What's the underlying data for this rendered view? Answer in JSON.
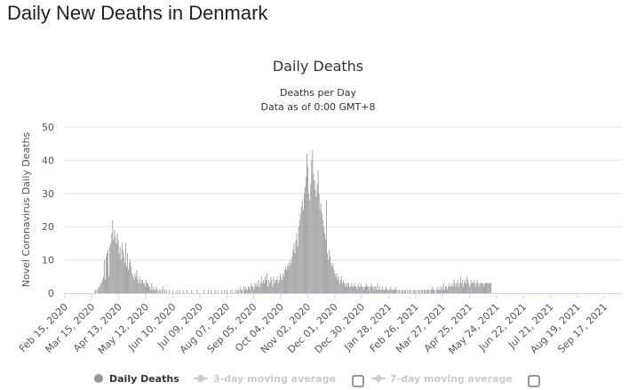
{
  "page": {
    "title": "Daily New Deaths in Denmark"
  },
  "colors": {
    "bar": "#999999",
    "grid": "#e6e6e6",
    "axis": "#ccd6eb",
    "legend_off": "#cccccc",
    "legend_on": "#333333"
  },
  "chart_data": {
    "type": "bar",
    "title": "Daily Deaths",
    "subtitle_lines": [
      "Deaths per Day",
      "Data as of 0:00 GMT+8"
    ],
    "ylabel": "Novel Coronavirus Daily Deaths",
    "xlabel": "",
    "ylim": [
      0,
      50
    ],
    "yticks": [
      0,
      10,
      20,
      30,
      40,
      50
    ],
    "grid": true,
    "x_start": "2020-02-15",
    "x_end": "2021-10-06",
    "x_tick_labels": [
      "Feb 15, 2020",
      "Mar 15, 2020",
      "Apr 13, 2020",
      "May 12, 2020",
      "Jun 10, 2020",
      "Jul 09, 2020",
      "Aug 07, 2020",
      "Sep 05, 2020",
      "Oct 04, 2020",
      "Nov 02, 2020",
      "Dec 01, 2020",
      "Dec 30, 2020",
      "Jan 28, 2021",
      "Feb 26, 2021",
      "Mar 27, 2021",
      "Apr 25, 2021",
      "May 24, 2021",
      "Jun 22, 2021",
      "Jul 21, 2021",
      "Aug 19, 2021",
      "Sep 17, 2021"
    ],
    "x_tick_values": [
      "2020-02-15",
      "2020-03-15",
      "2020-04-13",
      "2020-05-12",
      "2020-06-10",
      "2020-07-09",
      "2020-08-07",
      "2020-09-05",
      "2020-10-04",
      "2020-11-02",
      "2020-12-01",
      "2020-12-30",
      "2021-01-28",
      "2021-02-26",
      "2021-03-27",
      "2021-04-25",
      "2021-05-24",
      "2021-06-22",
      "2021-07-21",
      "2021-08-19",
      "2021-09-17"
    ],
    "series": [
      {
        "name": "Daily Deaths",
        "values": [
          0,
          0,
          0,
          0,
          0,
          0,
          0,
          0,
          0,
          0,
          0,
          0,
          0,
          0,
          0,
          0,
          0,
          0,
          0,
          0,
          0,
          0,
          0,
          0,
          0,
          0,
          0,
          0,
          0,
          0,
          0,
          0,
          1,
          1,
          0,
          1,
          2,
          2,
          3,
          3,
          4,
          5,
          10,
          4,
          11,
          12,
          13,
          5,
          14,
          15,
          18,
          22,
          16,
          19,
          17,
          15,
          18,
          16,
          12,
          14,
          10,
          15,
          13,
          11,
          9,
          15,
          8,
          12,
          7,
          9,
          10,
          8,
          6,
          5,
          4,
          6,
          5,
          7,
          4,
          3,
          5,
          3,
          4,
          4,
          3,
          3,
          2,
          4,
          3,
          3,
          2,
          2,
          1,
          3,
          1,
          2,
          1,
          1,
          2,
          1,
          0,
          1,
          1,
          0,
          1,
          2,
          0,
          1,
          0,
          1,
          0,
          0,
          1,
          0,
          0,
          0,
          1,
          0,
          0,
          0,
          1,
          0,
          0,
          1,
          0,
          0,
          0,
          1,
          0,
          0,
          0,
          1,
          0,
          0,
          0,
          0,
          1,
          0,
          0,
          0,
          0,
          0,
          1,
          0,
          0,
          0,
          0,
          0,
          0,
          1,
          0,
          0,
          0,
          0,
          1,
          0,
          0,
          1,
          0,
          0,
          0,
          1,
          0,
          0,
          1,
          0,
          0,
          0,
          1,
          0,
          0,
          1,
          0,
          0,
          1,
          0,
          0,
          0,
          1,
          0,
          1,
          0,
          0,
          1,
          0,
          1,
          1,
          0,
          2,
          1,
          1,
          0,
          2,
          1,
          2,
          1,
          1,
          2,
          2,
          1,
          3,
          2,
          2,
          1,
          3,
          2,
          3,
          2,
          4,
          2,
          3,
          5,
          3,
          4,
          3,
          5,
          4,
          6,
          2,
          4,
          3,
          5,
          4,
          2,
          5,
          3,
          4,
          4,
          5,
          3,
          4,
          6,
          5,
          4,
          6,
          5,
          7,
          8,
          7,
          8,
          9,
          8,
          10,
          9,
          11,
          13,
          15,
          12,
          16,
          18,
          14,
          20,
          22,
          24,
          26,
          28,
          25,
          30,
          32,
          35,
          42,
          38,
          30,
          28,
          33,
          40,
          43,
          36,
          34,
          31,
          29,
          33,
          37,
          30,
          25,
          27,
          24,
          22,
          20,
          18,
          16,
          28,
          12,
          10,
          13,
          11,
          9,
          8,
          9,
          7,
          6,
          5,
          6,
          4,
          5,
          3,
          4,
          5,
          3,
          4,
          3,
          2,
          3,
          2,
          3,
          3,
          2,
          2,
          3,
          2,
          2,
          3,
          2,
          2,
          1,
          3,
          2,
          2,
          3,
          2,
          2,
          1,
          2,
          2,
          3,
          2,
          2,
          1,
          2,
          3,
          2,
          2,
          1,
          2,
          2,
          1,
          3,
          1,
          2,
          1,
          1,
          2,
          1,
          1,
          1,
          2,
          1,
          1,
          1,
          1,
          2,
          1,
          1,
          1,
          1,
          2,
          1,
          1,
          0,
          1,
          1,
          0,
          1,
          1,
          0,
          1,
          1,
          0,
          1,
          0,
          1,
          1,
          0,
          1,
          0,
          1,
          1,
          0,
          1,
          0,
          1,
          1,
          0,
          1,
          1,
          0,
          1,
          1,
          0,
          1,
          1,
          1,
          0,
          1,
          1,
          2,
          1,
          1,
          0,
          1,
          2,
          1,
          1,
          2,
          1,
          2,
          1,
          3,
          1,
          2,
          2,
          1,
          2,
          3,
          2,
          2,
          3,
          2,
          4,
          3,
          2,
          3,
          4,
          2,
          3,
          5,
          3,
          4,
          2,
          3,
          4,
          3,
          5,
          4,
          3,
          2,
          3,
          4,
          3,
          3,
          4,
          2,
          3,
          4,
          3,
          2,
          3,
          3,
          3,
          3,
          2,
          3,
          3,
          3,
          3,
          3,
          3,
          3,
          3
        ]
      }
    ],
    "legend": {
      "placement": "bottom-center",
      "items": [
        {
          "label": "Daily Deaths",
          "active": true,
          "marker": "circle"
        },
        {
          "label": "3-day moving average",
          "active": false,
          "marker": "line-circle"
        },
        {
          "label": "7-day moving average",
          "active": false,
          "marker": "line-diamond"
        }
      ]
    }
  }
}
